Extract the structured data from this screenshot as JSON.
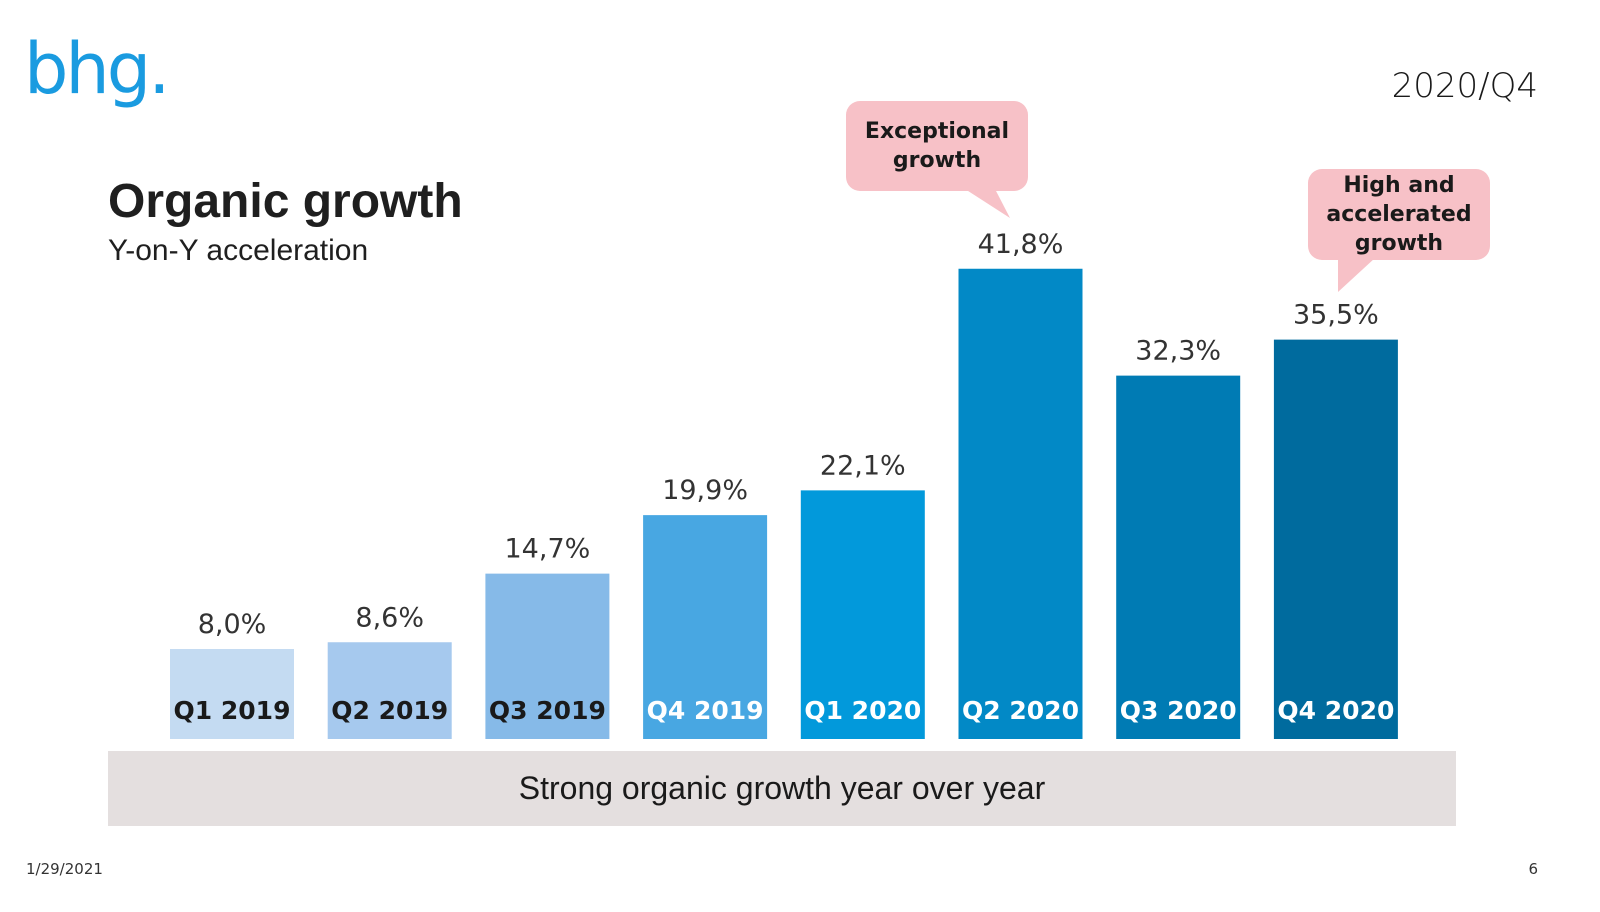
{
  "logo": {
    "text": "bhg.",
    "color": "#1a9be0"
  },
  "period": "2020/Q4",
  "title": "Organic growth",
  "subtitle": "Y-on-Y acceleration",
  "callouts": [
    {
      "text": "Exceptional\ngrowth",
      "points_to": "Q2 2020",
      "color": "#f7c1c7"
    },
    {
      "text": "High and\naccelerated\ngrowth",
      "points_to": "Q4 2020",
      "color": "#f7c1c7"
    }
  ],
  "banner": "Strong organic growth year over year",
  "footer": {
    "date": "1/29/2021",
    "page": "6"
  },
  "chart_data": {
    "type": "bar",
    "title": "Organic growth",
    "subtitle": "Y-on-Y acceleration",
    "xlabel": "",
    "ylabel": "",
    "unit": "%",
    "ylim": [
      0,
      45
    ],
    "grid": false,
    "legend": "none",
    "categories": [
      "Q1 2019",
      "Q2 2019",
      "Q3 2019",
      "Q4 2019",
      "Q1 2020",
      "Q2 2020",
      "Q3 2020",
      "Q4 2020"
    ],
    "values": [
      8.0,
      8.6,
      14.7,
      19.9,
      22.1,
      41.8,
      32.3,
      35.5
    ],
    "value_labels": [
      "8,0%",
      "8,6%",
      "14,7%",
      "19,9%",
      "22,1%",
      "41,8%",
      "32,3%",
      "35,5%"
    ],
    "bar_colors": [
      "#c4dbf2",
      "#a6c9ee",
      "#86bae8",
      "#48a7e2",
      "#0299db",
      "#0289c6",
      "#007bb4",
      "#006b9e"
    ],
    "category_label_colors": [
      "#1a1a1a",
      "#1a1a1a",
      "#1a1a1a",
      "#ffffff",
      "#ffffff",
      "#ffffff",
      "#ffffff",
      "#ffffff"
    ]
  }
}
